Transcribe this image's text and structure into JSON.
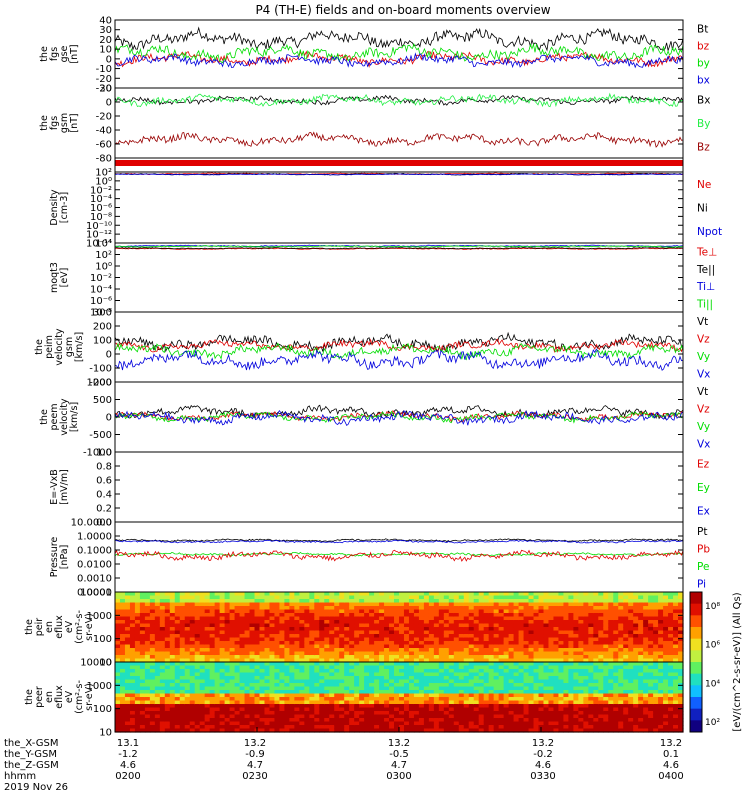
{
  "title": "P4 (TH-E) fields and on-board moments overview",
  "colors": {
    "black": "#000000",
    "red": "#e00000",
    "green": "#00dd00",
    "blue": "#0000dd",
    "bright_green": "#22ee44",
    "dark_red": "#990000"
  },
  "colorbar": {
    "label": "[eV/(cm^2-s-sr-eV)] (All Qs)"
  },
  "chart_data": [
    {
      "type": "line",
      "id": "fgs_gse",
      "ylabel_lines": [
        "the",
        "fgs",
        "gse",
        "[nT]"
      ],
      "yticks": [
        "40",
        "30",
        "20",
        "10",
        "0",
        "-10",
        "-20",
        "-30"
      ],
      "ylim": [
        -30,
        40
      ],
      "legend": [
        "Bt",
        "bz",
        "by",
        "bx"
      ],
      "legend_colors": [
        "black",
        "red",
        "green",
        "blue"
      ],
      "series": [
        {
          "name": "Bt",
          "base": 20,
          "amp": 9,
          "color": "black"
        },
        {
          "name": "bz",
          "base": 0,
          "amp": 6,
          "color": "red"
        },
        {
          "name": "by",
          "base": 6,
          "amp": 8,
          "color": "green"
        },
        {
          "name": "bx",
          "base": -2,
          "amp": 6,
          "color": "blue"
        }
      ]
    },
    {
      "type": "line",
      "id": "fgs_gsm",
      "ylabel_lines": [
        "the",
        "fgs",
        "gsm",
        "[nT]"
      ],
      "yticks": [
        "20",
        "0",
        "-20",
        "-40",
        "-60",
        "-80"
      ],
      "ylim": [
        -90,
        25
      ],
      "legend": [
        "Bx",
        "By",
        "Bz"
      ],
      "legend_colors": [
        "black",
        "bright_green",
        "dark_red"
      ],
      "series": [
        {
          "name": "Bx",
          "base": 5,
          "amp": 6,
          "color": "black"
        },
        {
          "name": "By",
          "base": 5,
          "amp": 8,
          "color": "bright_green"
        },
        {
          "name": "Bz",
          "base": -60,
          "amp": 9,
          "color": "dark_red"
        }
      ]
    },
    {
      "type": "line",
      "id": "density",
      "ylabel_lines": [
        "Density",
        "[cm-3]"
      ],
      "yticks": [
        "10²",
        "10⁰",
        "10⁻²",
        "10⁻⁴",
        "10⁻⁶",
        "10⁻⁸",
        "10⁻¹⁰",
        "10⁻¹²",
        "10⁻¹⁴"
      ],
      "ylim": [
        -14,
        2
      ],
      "scale": "log",
      "legend": [
        "Ne",
        "Ni",
        "Npot"
      ],
      "legend_colors": [
        "red",
        "black",
        "blue"
      ],
      "series": [
        {
          "name": "Ne",
          "base": 1.6,
          "amp": 0.15,
          "color": "red"
        },
        {
          "name": "Ni",
          "base": 1.5,
          "amp": 0.15,
          "color": "black"
        },
        {
          "name": "Npot",
          "base": 1.45,
          "amp": 0.1,
          "color": "blue"
        }
      ]
    },
    {
      "type": "line",
      "id": "temperature",
      "ylabel_lines": [
        "moqt3",
        "[eV]"
      ],
      "yticks": [
        "10⁴",
        "10²",
        "10⁰",
        "10⁻²",
        "10⁻⁴",
        "10⁻⁶",
        "10⁻⁸"
      ],
      "ylim": [
        -8,
        4
      ],
      "scale": "log",
      "legend": [
        "Te⊥",
        "Te||",
        "Ti⊥",
        "Ti||"
      ],
      "legend_colors": [
        "red",
        "black",
        "blue",
        "green"
      ],
      "series": [
        {
          "name": "Te⊥",
          "base": 3.0,
          "amp": 0.1,
          "color": "red"
        },
        {
          "name": "Te||",
          "base": 3.1,
          "amp": 0.1,
          "color": "black"
        },
        {
          "name": "Ti⊥",
          "base": 3.5,
          "amp": 0.1,
          "color": "blue"
        },
        {
          "name": "Ti||",
          "base": 3.4,
          "amp": 0.1,
          "color": "green"
        }
      ]
    },
    {
      "type": "line",
      "id": "peim_velocity",
      "ylabel_lines": [
        "the",
        "peim",
        "velocity",
        "gsm",
        "[km/s]"
      ],
      "yticks": [
        "300",
        "200",
        "100",
        "0",
        "-100",
        "-200"
      ],
      "ylim": [
        -200,
        300
      ],
      "legend": [
        "Vt",
        "Vz",
        "Vy",
        "Vx"
      ],
      "legend_colors": [
        "black",
        "red",
        "green",
        "blue"
      ],
      "series": [
        {
          "name": "Vt",
          "base": 80,
          "amp": 50,
          "color": "black"
        },
        {
          "name": "Vz",
          "base": 60,
          "amp": 35,
          "color": "red"
        },
        {
          "name": "Vy",
          "base": 20,
          "amp": 45,
          "color": "green"
        },
        {
          "name": "Vx",
          "base": -40,
          "amp": 60,
          "color": "blue"
        }
      ]
    },
    {
      "type": "line",
      "id": "peem_velocity",
      "ylabel_lines": [
        "the",
        "peem",
        "velocity",
        "[km/s]"
      ],
      "yticks": [
        "1000",
        "500",
        "0",
        "-500",
        "-1000"
      ],
      "ylim": [
        -1000,
        1000
      ],
      "legend": [
        "Vt",
        "Vz",
        "Vy",
        "Vx"
      ],
      "legend_colors": [
        "black",
        "red",
        "green",
        "blue"
      ],
      "series": [
        {
          "name": "Vt",
          "base": 150,
          "amp": 150,
          "color": "black"
        },
        {
          "name": "Vz",
          "base": 20,
          "amp": 120,
          "color": "red"
        },
        {
          "name": "Vy",
          "base": 0,
          "amp": 120,
          "color": "green"
        },
        {
          "name": "Vx",
          "base": -30,
          "amp": 160,
          "color": "blue"
        }
      ]
    },
    {
      "type": "line",
      "id": "efield",
      "ylabel_lines": [
        "E=-VxB",
        "[mV/m]"
      ],
      "yticks": [
        "1.0",
        "0.8",
        "0.6",
        "0.4",
        "0.2",
        "0.0"
      ],
      "ylim": [
        0,
        1
      ],
      "legend": [
        "Ez",
        "Ey",
        "Ex"
      ],
      "legend_colors": [
        "red",
        "green",
        "blue"
      ],
      "series": []
    },
    {
      "type": "line",
      "id": "pressure",
      "ylabel_lines": [
        "Pressure",
        "[nPa]"
      ],
      "yticks": [
        "10.0000",
        "1.0000",
        "0.1000",
        "0.0100",
        "0.0010",
        "0.0001"
      ],
      "ylim": [
        -4,
        1
      ],
      "scale": "log",
      "legend": [
        "Pt",
        "Pb",
        "Pe",
        "Pi"
      ],
      "legend_colors": [
        "black",
        "red",
        "green",
        "blue"
      ],
      "series": [
        {
          "name": "Pt",
          "base": -0.3,
          "amp": 0.08,
          "color": "black"
        },
        {
          "name": "Pi",
          "base": -0.4,
          "amp": 0.08,
          "color": "blue"
        },
        {
          "name": "Pe",
          "base": -1.3,
          "amp": 0.1,
          "color": "green"
        },
        {
          "name": "Pb",
          "base": -1.4,
          "amp": 0.3,
          "color": "red"
        }
      ]
    },
    {
      "type": "heatmap",
      "id": "peir_spectrum",
      "ylabel_lines": [
        "the",
        "peir",
        "en",
        "eflux",
        "eV",
        "(cm²-s-",
        "sr-eV)"
      ],
      "yticks": [
        "10000",
        "1000",
        "100",
        "10"
      ],
      "ylim": [
        1,
        4.4
      ],
      "scale": "log"
    },
    {
      "type": "heatmap",
      "id": "peer_spectrum",
      "ylabel_lines": [
        "the",
        "peer",
        "en",
        "eflux",
        "eV",
        "(cm²-s-",
        "sr-eV)"
      ],
      "yticks": [
        "10000",
        "1000",
        "100",
        "10"
      ],
      "ylim": [
        1,
        4.4
      ],
      "scale": "log"
    }
  ],
  "colorbar_ticks": [
    "10⁸",
    "10⁶",
    "10⁴",
    "10²"
  ],
  "xaxis": {
    "row_labels": [
      "the_X-GSM",
      "the_Y-GSM",
      "the_Z-GSM",
      "hhmm",
      "2019 Nov 26"
    ],
    "ticks": [
      {
        "x": "13.1",
        "y": "-1.2",
        "z": "4.6",
        "time": "0200"
      },
      {
        "x": "13.2",
        "y": "-0.9",
        "z": "4.7",
        "time": "0230"
      },
      {
        "x": "13.2",
        "y": "-0.5",
        "z": "4.7",
        "time": "0300"
      },
      {
        "x": "13.2",
        "y": "-0.2",
        "z": "4.6",
        "time": "0330"
      },
      {
        "x": "13.2",
        "y": "0.1",
        "z": "4.6",
        "time": "0400"
      }
    ]
  }
}
